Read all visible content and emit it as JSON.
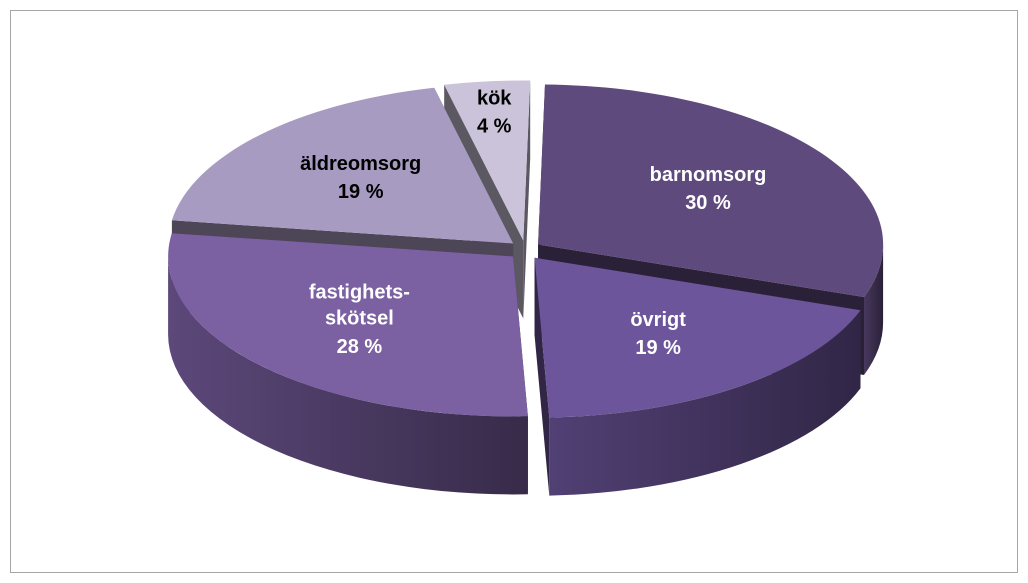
{
  "chart_data": {
    "type": "pie",
    "categories": [
      "barnomsorg",
      "övrigt",
      "fastighets-skötsel",
      "äldreomsorg",
      "kök"
    ],
    "values": [
      30,
      19,
      28,
      19,
      4
    ],
    "value_labels": [
      "30 %",
      "19 %",
      "28 %",
      "19 %",
      "4 %"
    ],
    "colors": [
      "#5e4a7c",
      "#6c559b",
      "#7b60a2",
      "#a89bc1",
      "#cbc3da"
    ]
  }
}
